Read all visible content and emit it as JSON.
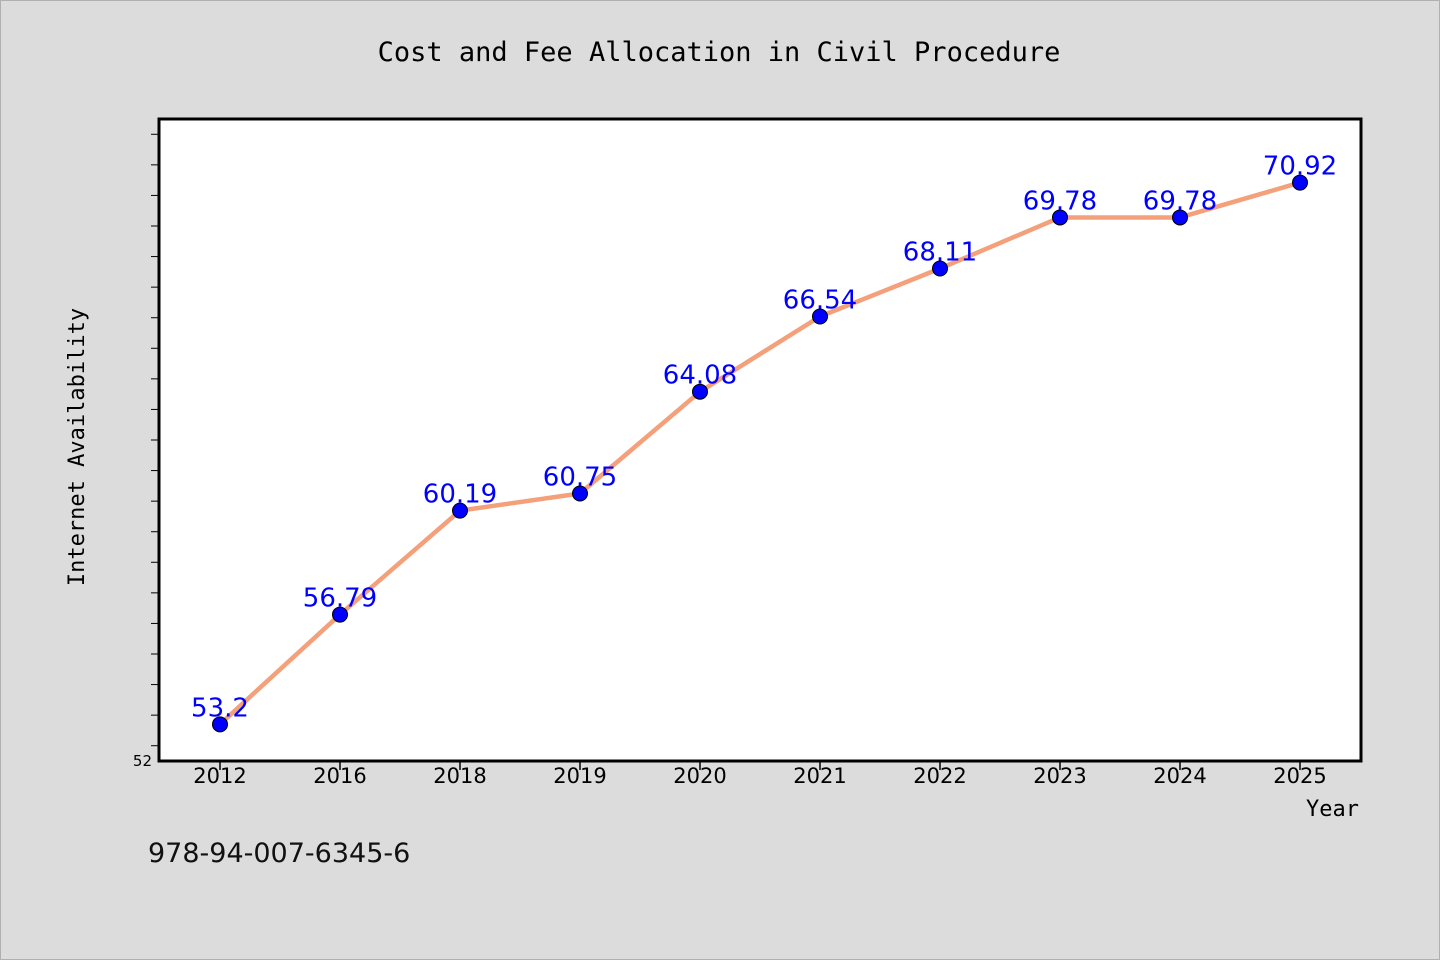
{
  "chart_data": {
    "type": "line",
    "title": "Cost and Fee Allocation in Civil Procedure",
    "xlabel": "Year",
    "ylabel": "Internet Availability",
    "categories": [
      "2012",
      "2016",
      "2018",
      "2019",
      "2020",
      "2021",
      "2022",
      "2023",
      "2024",
      "2025"
    ],
    "series": [
      {
        "values": [
          53.2,
          56.79,
          60.19,
          60.75,
          64.08,
          66.54,
          68.11,
          69.78,
          69.78,
          70.92
        ],
        "labels": [
          "53.2",
          "56.79",
          "60.19",
          "60.75",
          "64.08",
          "66.54",
          "68.11",
          "69.78",
          "69.78",
          "70.92"
        ],
        "line_color": "#f4a07a",
        "marker_color": "#0000ff"
      }
    ],
    "ylim": [
      52,
      73
    ],
    "yticks_labeled": [
      "52"
    ],
    "grid": false,
    "legend": "none"
  },
  "footer": {
    "isbn": "978-94-007-6345-6"
  },
  "colors": {
    "background": "#dcdcdc",
    "plot_background": "#ffffff"
  }
}
